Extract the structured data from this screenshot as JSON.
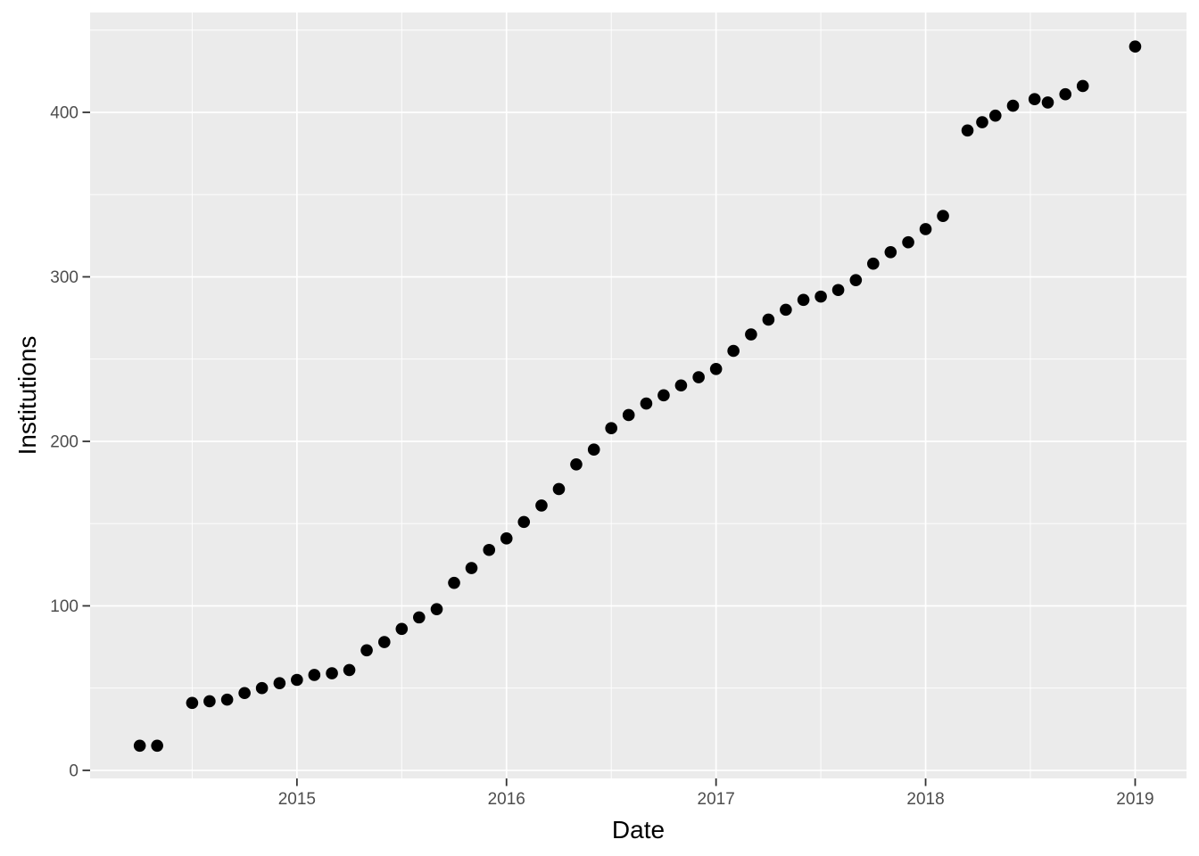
{
  "chart_data": {
    "type": "scatter",
    "title": "",
    "xlabel": "Date",
    "ylabel": "Institutions",
    "legend": "none",
    "grid": "major-and-minor",
    "x_ticks": [
      {
        "label": "2015",
        "value": 2015
      },
      {
        "label": "2016",
        "value": 2016
      },
      {
        "label": "2017",
        "value": 2017
      },
      {
        "label": "2018",
        "value": 2018
      },
      {
        "label": "2019",
        "value": 2019
      }
    ],
    "y_ticks": [
      {
        "label": "0",
        "value": 0
      },
      {
        "label": "100",
        "value": 100
      },
      {
        "label": "200",
        "value": 200
      },
      {
        "label": "300",
        "value": 300
      },
      {
        "label": "400",
        "value": 400
      }
    ],
    "x_minor": [
      2014.5,
      2015.5,
      2016.5,
      2017.5,
      2018.5
    ],
    "y_minor": [
      50,
      150,
      250,
      350,
      450
    ],
    "xlim": [
      2014.013,
      2019.245
    ],
    "ylim": [
      -4.9,
      460.7
    ],
    "colors": {
      "panel_bg": "#EBEBEB",
      "grid": "#FFFFFF",
      "point": "#000000",
      "axis_text": "#4D4D4D",
      "axis_title": "#000000",
      "tick_mark": "#333333",
      "page_bg": "#FFFFFF"
    },
    "series": [
      {
        "name": "Institutions",
        "points": [
          {
            "date": "2014-04",
            "x": 2014.25,
            "y": 15
          },
          {
            "date": "2014-05",
            "x": 2014.333,
            "y": 15
          },
          {
            "date": "2014-07",
            "x": 2014.5,
            "y": 41
          },
          {
            "date": "2014-08",
            "x": 2014.583,
            "y": 42
          },
          {
            "date": "2014-09",
            "x": 2014.667,
            "y": 43
          },
          {
            "date": "2014-10",
            "x": 2014.75,
            "y": 47
          },
          {
            "date": "2014-11",
            "x": 2014.833,
            "y": 50
          },
          {
            "date": "2014-12",
            "x": 2014.917,
            "y": 53
          },
          {
            "date": "2015-01",
            "x": 2015.0,
            "y": 55
          },
          {
            "date": "2015-02",
            "x": 2015.083,
            "y": 58
          },
          {
            "date": "2015-03",
            "x": 2015.167,
            "y": 59
          },
          {
            "date": "2015-04",
            "x": 2015.25,
            "y": 61
          },
          {
            "date": "2015-05",
            "x": 2015.333,
            "y": 73
          },
          {
            "date": "2015-06",
            "x": 2015.417,
            "y": 78
          },
          {
            "date": "2015-07",
            "x": 2015.5,
            "y": 86
          },
          {
            "date": "2015-08",
            "x": 2015.583,
            "y": 93
          },
          {
            "date": "2015-09",
            "x": 2015.667,
            "y": 98
          },
          {
            "date": "2015-10",
            "x": 2015.75,
            "y": 114
          },
          {
            "date": "2015-11",
            "x": 2015.833,
            "y": 123
          },
          {
            "date": "2015-12",
            "x": 2015.917,
            "y": 134
          },
          {
            "date": "2016-01",
            "x": 2016.0,
            "y": 141
          },
          {
            "date": "2016-02",
            "x": 2016.083,
            "y": 151
          },
          {
            "date": "2016-03",
            "x": 2016.167,
            "y": 161
          },
          {
            "date": "2016-04",
            "x": 2016.25,
            "y": 171
          },
          {
            "date": "2016-05",
            "x": 2016.333,
            "y": 186
          },
          {
            "date": "2016-06",
            "x": 2016.417,
            "y": 195
          },
          {
            "date": "2016-07",
            "x": 2016.5,
            "y": 208
          },
          {
            "date": "2016-08",
            "x": 2016.583,
            "y": 216
          },
          {
            "date": "2016-09",
            "x": 2016.667,
            "y": 223
          },
          {
            "date": "2016-10",
            "x": 2016.75,
            "y": 228
          },
          {
            "date": "2016-11",
            "x": 2016.833,
            "y": 234
          },
          {
            "date": "2016-12",
            "x": 2016.917,
            "y": 239
          },
          {
            "date": "2017-01",
            "x": 2017.0,
            "y": 244
          },
          {
            "date": "2017-02",
            "x": 2017.083,
            "y": 255
          },
          {
            "date": "2017-03",
            "x": 2017.167,
            "y": 265
          },
          {
            "date": "2017-04",
            "x": 2017.25,
            "y": 274
          },
          {
            "date": "2017-05",
            "x": 2017.333,
            "y": 280
          },
          {
            "date": "2017-06",
            "x": 2017.417,
            "y": 286
          },
          {
            "date": "2017-07",
            "x": 2017.5,
            "y": 288
          },
          {
            "date": "2017-08",
            "x": 2017.583,
            "y": 292
          },
          {
            "date": "2017-09",
            "x": 2017.667,
            "y": 298
          },
          {
            "date": "2017-10",
            "x": 2017.75,
            "y": 308
          },
          {
            "date": "2017-11",
            "x": 2017.833,
            "y": 315
          },
          {
            "date": "2017-12",
            "x": 2017.917,
            "y": 321
          },
          {
            "date": "2018-01",
            "x": 2018.0,
            "y": 329
          },
          {
            "date": "2018-02",
            "x": 2018.083,
            "y": 337
          },
          {
            "date": "2018-03",
            "x": 2018.2,
            "y": 389
          },
          {
            "date": "2018-04",
            "x": 2018.27,
            "y": 394
          },
          {
            "date": "2018-05",
            "x": 2018.333,
            "y": 398
          },
          {
            "date": "2018-06",
            "x": 2018.417,
            "y": 404
          },
          {
            "date": "2018-07",
            "x": 2018.52,
            "y": 408
          },
          {
            "date": "2018-08",
            "x": 2018.583,
            "y": 406
          },
          {
            "date": "2018-09",
            "x": 2018.667,
            "y": 411
          },
          {
            "date": "2018-10",
            "x": 2018.75,
            "y": 416
          },
          {
            "date": "2019-01",
            "x": 2019.0,
            "y": 440
          }
        ]
      }
    ]
  }
}
